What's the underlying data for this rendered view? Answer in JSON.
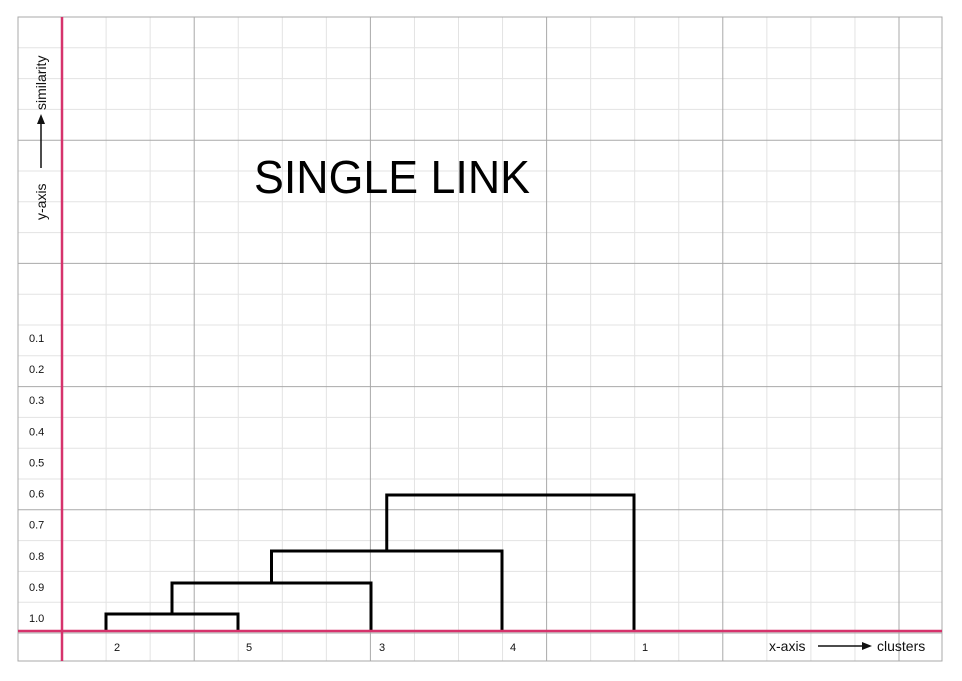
{
  "chart_data": {
    "type": "dendrogram",
    "title": "SINGLE LINK",
    "y_axis": {
      "label": "y-axis",
      "quantity": "similarity",
      "arrow": "up"
    },
    "x_axis": {
      "label": "x-axis",
      "quantity": "clusters",
      "arrow": "right"
    },
    "y_ticks": [
      "0.1",
      "0.2",
      "0.3",
      "0.4",
      "0.5",
      "0.6",
      "0.7",
      "0.8",
      "0.9",
      "1.0"
    ],
    "leaves": [
      "2",
      "5",
      "3",
      "4",
      "1"
    ],
    "merges": [
      {
        "left": "2",
        "right": "5",
        "similarity": 1.0
      },
      {
        "left": "2,5",
        "right": "3",
        "similarity": 0.9
      },
      {
        "left": "2,5,3",
        "right": "4",
        "similarity": 0.8
      },
      {
        "left": "2,5,3,4",
        "right": "1",
        "similarity": 0.6
      }
    ],
    "grid": true,
    "colors": {
      "axis": "#d6336c",
      "grid_minor": "#e3e3e3",
      "grid_major": "#a9a9a9",
      "tree": "#000000"
    }
  }
}
